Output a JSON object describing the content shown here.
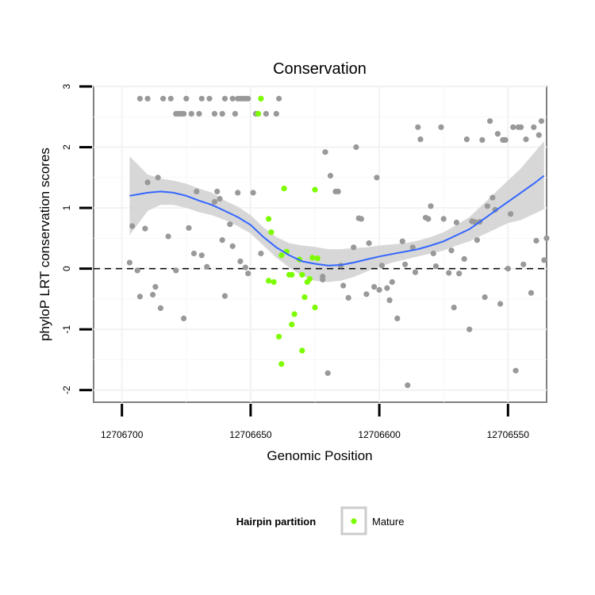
{
  "chart_data": {
    "type": "scatter",
    "title": "Conservation",
    "xlabel": "Genomic Position",
    "ylabel": "phyloP LRT conservation scores",
    "x_reversed": true,
    "xlim": [
      12706711,
      12706535
    ],
    "ylim": [
      -2.2,
      3.0
    ],
    "x_ticks": [
      12706700,
      12706650,
      12706600,
      12706550
    ],
    "x_tick_labels": [
      "12706700",
      "12706650",
      "12706600",
      "12706550"
    ],
    "y_ticks": [
      -2,
      -1,
      0,
      1,
      2,
      3
    ],
    "y_tick_labels": [
      "-2",
      "-1",
      "0",
      "1",
      "2",
      "3"
    ],
    "reference_line": {
      "y": 0,
      "style": "dashed"
    },
    "grid": true,
    "legend": {
      "title": "Hairpin partition",
      "entries": [
        "Mature"
      ],
      "placement": "bottom"
    },
    "colors": {
      "other": "#999999",
      "mature": "#7cfc00",
      "smooth": "#3366ff",
      "band": "#d3d3d3"
    },
    "series": [
      {
        "group": "other",
        "color": "#999999",
        "points": [
          [
            12706693,
            2.8
          ],
          [
            12706690,
            2.8
          ],
          [
            12706684,
            2.8
          ],
          [
            12706681,
            2.8
          ],
          [
            12706675,
            2.8
          ],
          [
            12706669,
            2.8
          ],
          [
            12706666,
            2.8
          ],
          [
            12706660,
            2.8
          ],
          [
            12706657,
            2.8
          ],
          [
            12706655,
            2.8
          ],
          [
            12706654,
            2.8
          ],
          [
            12706653,
            2.8
          ],
          [
            12706652,
            2.8
          ],
          [
            12706651,
            2.8
          ],
          [
            12706646,
            2.8
          ],
          [
            12706639,
            2.8
          ],
          [
            12706679,
            2.55
          ],
          [
            12706678,
            2.55
          ],
          [
            12706677,
            2.55
          ],
          [
            12706676,
            2.55
          ],
          [
            12706673,
            2.55
          ],
          [
            12706670,
            2.55
          ],
          [
            12706664,
            2.55
          ],
          [
            12706661,
            2.55
          ],
          [
            12706656,
            2.55
          ],
          [
            12706648,
            2.55
          ],
          [
            12706644,
            2.55
          ],
          [
            12706640,
            2.55
          ],
          [
            12706697,
            0.1
          ],
          [
            12706696,
            0.7
          ],
          [
            12706694,
            -0.03
          ],
          [
            12706693,
            -0.46
          ],
          [
            12706691,
            0.66
          ],
          [
            12706690,
            1.42
          ],
          [
            12706688,
            -0.43
          ],
          [
            12706687,
            -0.3
          ],
          [
            12706686,
            1.5
          ],
          [
            12706685,
            -0.65
          ],
          [
            12706682,
            0.53
          ],
          [
            12706679,
            -0.03
          ],
          [
            12706676,
            -0.82
          ],
          [
            12706674,
            0.67
          ],
          [
            12706672,
            0.25
          ],
          [
            12706671,
            1.27
          ],
          [
            12706669,
            0.22
          ],
          [
            12706667,
            0.03
          ],
          [
            12706664,
            1.1
          ],
          [
            12706663,
            1.27
          ],
          [
            12706662,
            1.15
          ],
          [
            12706661,
            0.47
          ],
          [
            12706660,
            -0.45
          ],
          [
            12706658,
            0.73
          ],
          [
            12706657,
            0.37
          ],
          [
            12706655,
            1.25
          ],
          [
            12706654,
            0.12
          ],
          [
            12706652,
            0.02
          ],
          [
            12706651,
            -0.08
          ],
          [
            12706649,
            1.25
          ],
          [
            12706646,
            0.25
          ],
          [
            12706622,
            -0.13
          ],
          [
            12706622,
            -0.18
          ],
          [
            12706621,
            1.92
          ],
          [
            12706620,
            -1.72
          ],
          [
            12706619,
            1.53
          ],
          [
            12706617,
            1.27
          ],
          [
            12706616,
            1.27
          ],
          [
            12706615,
            0.05
          ],
          [
            12706614,
            -0.28
          ],
          [
            12706612,
            -0.48
          ],
          [
            12706610,
            0.35
          ],
          [
            12706609,
            2.0
          ],
          [
            12706608,
            0.83
          ],
          [
            12706607,
            0.82
          ],
          [
            12706605,
            -0.42
          ],
          [
            12706604,
            0.42
          ],
          [
            12706602,
            -0.3
          ],
          [
            12706601,
            1.5
          ],
          [
            12706600,
            -0.35
          ],
          [
            12706599,
            0.05
          ],
          [
            12706597,
            -0.32
          ],
          [
            12706596,
            -0.52
          ],
          [
            12706595,
            -0.22
          ],
          [
            12706593,
            -0.82
          ],
          [
            12706591,
            0.45
          ],
          [
            12706590,
            0.07
          ],
          [
            12706589,
            -1.92
          ],
          [
            12706587,
            0.35
          ],
          [
            12706586,
            -0.06
          ],
          [
            12706585,
            2.33
          ],
          [
            12706584,
            2.13
          ],
          [
            12706582,
            0.84
          ],
          [
            12706581,
            0.82
          ],
          [
            12706580,
            1.03
          ],
          [
            12706579,
            0.25
          ],
          [
            12706578,
            0.04
          ],
          [
            12706576,
            2.33
          ],
          [
            12706575,
            0.82
          ],
          [
            12706573,
            -0.07
          ],
          [
            12706572,
            0.3
          ],
          [
            12706571,
            -0.64
          ],
          [
            12706570,
            0.76
          ],
          [
            12706569,
            -0.08
          ],
          [
            12706567,
            0.16
          ],
          [
            12706566,
            2.13
          ],
          [
            12706565,
            -1.0
          ],
          [
            12706564,
            0.78
          ],
          [
            12706563,
            0.77
          ],
          [
            12706562,
            0.47
          ],
          [
            12706561,
            0.77
          ],
          [
            12706560,
            2.12
          ],
          [
            12706559,
            -0.47
          ],
          [
            12706558,
            1.03
          ],
          [
            12706557,
            2.43
          ],
          [
            12706556,
            1.17
          ],
          [
            12706555,
            0.97
          ],
          [
            12706554,
            2.22
          ],
          [
            12706553,
            -0.58
          ],
          [
            12706552,
            2.12
          ],
          [
            12706551,
            2.12
          ],
          [
            12706550,
            0.0
          ],
          [
            12706549,
            0.9
          ],
          [
            12706548,
            2.33
          ],
          [
            12706547,
            -1.68
          ],
          [
            12706546,
            2.33
          ],
          [
            12706545,
            2.33
          ],
          [
            12706544,
            0.07
          ],
          [
            12706543,
            2.13
          ],
          [
            12706541,
            -0.4
          ],
          [
            12706540,
            2.33
          ],
          [
            12706539,
            0.46
          ],
          [
            12706538,
            2.2
          ],
          [
            12706537,
            2.43
          ],
          [
            12706536,
            0.14
          ],
          [
            12706535,
            0.5
          ]
        ]
      },
      {
        "group": "mature",
        "name": "Mature",
        "color": "#7cfc00",
        "points": [
          [
            12706646,
            2.8
          ],
          [
            12706647,
            2.55
          ],
          [
            12706637,
            1.32
          ],
          [
            12706625,
            1.3
          ],
          [
            12706643,
            0.82
          ],
          [
            12706642,
            0.6
          ],
          [
            12706638,
            0.22
          ],
          [
            12706636,
            0.28
          ],
          [
            12706635,
            -0.1
          ],
          [
            12706634,
            -0.1
          ],
          [
            12706631,
            0.15
          ],
          [
            12706630,
            -0.1
          ],
          [
            12706628,
            -0.22
          ],
          [
            12706627,
            -0.17
          ],
          [
            12706626,
            0.18
          ],
          [
            12706624,
            0.17
          ],
          [
            12706643,
            -0.2
          ],
          [
            12706641,
            -0.22
          ],
          [
            12706629,
            -0.47
          ],
          [
            12706625,
            -0.64
          ],
          [
            12706633,
            -0.75
          ],
          [
            12706634,
            -0.92
          ],
          [
            12706639,
            -1.12
          ],
          [
            12706630,
            -1.35
          ],
          [
            12706638,
            -1.57
          ]
        ]
      }
    ],
    "smooth": {
      "method": "loess",
      "color": "#3366ff",
      "points": [
        [
          12706697,
          1.2
        ],
        [
          12706690,
          1.25
        ],
        [
          12706685,
          1.27
        ],
        [
          12706680,
          1.25
        ],
        [
          12706675,
          1.2
        ],
        [
          12706670,
          1.12
        ],
        [
          12706665,
          1.05
        ],
        [
          12706660,
          0.95
        ],
        [
          12706655,
          0.85
        ],
        [
          12706650,
          0.72
        ],
        [
          12706645,
          0.52
        ],
        [
          12706640,
          0.35
        ],
        [
          12706635,
          0.22
        ],
        [
          12706630,
          0.12
        ],
        [
          12706625,
          0.08
        ],
        [
          12706620,
          0.05
        ],
        [
          12706615,
          0.06
        ],
        [
          12706610,
          0.1
        ],
        [
          12706605,
          0.15
        ],
        [
          12706600,
          0.2
        ],
        [
          12706595,
          0.24
        ],
        [
          12706590,
          0.28
        ],
        [
          12706585,
          0.32
        ],
        [
          12706580,
          0.38
        ],
        [
          12706575,
          0.45
        ],
        [
          12706570,
          0.55
        ],
        [
          12706565,
          0.65
        ],
        [
          12706560,
          0.8
        ],
        [
          12706555,
          0.95
        ],
        [
          12706550,
          1.1
        ],
        [
          12706545,
          1.25
        ],
        [
          12706540,
          1.4
        ],
        [
          12706536,
          1.53
        ]
      ],
      "band_lower": [
        0.55,
        0.95,
        1.05,
        1.05,
        1.0,
        0.93,
        0.88,
        0.8,
        0.7,
        0.58,
        0.38,
        0.18,
        0.02,
        -0.12,
        -0.2,
        -0.22,
        -0.2,
        -0.14,
        -0.05,
        0.03,
        0.1,
        0.15,
        0.2,
        0.25,
        0.3,
        0.38,
        0.45,
        0.55,
        0.65,
        0.75,
        0.8,
        0.9,
        0.98
      ],
      "band_upper": [
        1.85,
        1.55,
        1.48,
        1.45,
        1.4,
        1.32,
        1.25,
        1.12,
        1.02,
        0.88,
        0.68,
        0.52,
        0.42,
        0.38,
        0.36,
        0.32,
        0.32,
        0.34,
        0.35,
        0.38,
        0.4,
        0.42,
        0.46,
        0.52,
        0.6,
        0.72,
        0.85,
        1.05,
        1.25,
        1.45,
        1.65,
        1.9,
        2.1
      ]
    }
  }
}
